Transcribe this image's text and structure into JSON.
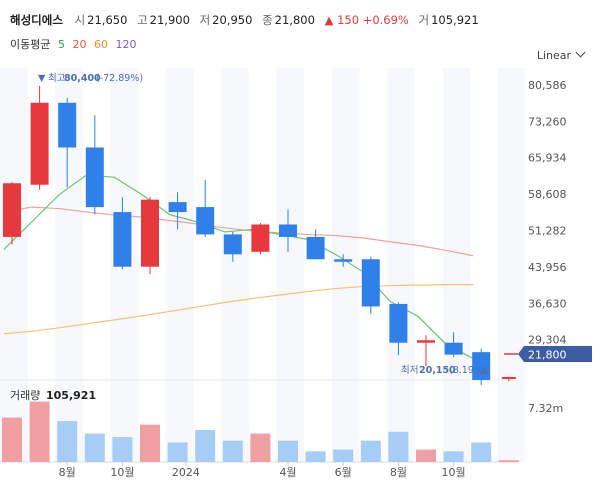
{
  "header": {
    "name": "해성디에스",
    "open_label": "시",
    "open": "21,650",
    "high_label": "고",
    "high": "21,900",
    "low_label": "저",
    "low": "20,950",
    "close_label": "종",
    "close": "21,800",
    "change_arrow": "▲",
    "change": "150",
    "change_pct": "+0.69%",
    "volume_label": "거",
    "volume": "105,921"
  },
  "ma": {
    "label": "이동평균",
    "periods": [
      {
        "text": "5",
        "color": "#3aa14a"
      },
      {
        "text": "20",
        "color": "#e05a3a"
      },
      {
        "text": "60",
        "color": "#e0922a"
      },
      {
        "text": "120",
        "color": "#7a5cc7"
      }
    ]
  },
  "scale_button": "Linear",
  "annotations": {
    "max_label": "최고",
    "max_value": "80,400",
    "max_pct": "(-72.89%)",
    "min_label": "최저",
    "min_value": "20,150",
    "min_pct": "(8.19%)"
  },
  "volume_panel": {
    "label": "거래량",
    "value": "105,921",
    "axis_tick": "7.32m"
  },
  "price_tag": "21,800",
  "colors": {
    "up": "#e5393e",
    "down": "#2f80e8",
    "ma5": "#6cc46c",
    "ma20": "#f0a0a0",
    "ma60": "#f5c07a",
    "tag": "#3d5ca3",
    "vol_up": "#f0a0a3",
    "vol_down": "#a6cdf5"
  },
  "chart_data": {
    "type": "candlestick",
    "y_ticks": [
      "80,586",
      "73,260",
      "65,934",
      "58,608",
      "51,282",
      "43,956",
      "36,630",
      "29,304"
    ],
    "x_ticks": [
      "8월",
      "10월",
      "2024",
      "4월",
      "6월",
      "8월",
      "10월"
    ],
    "ylim": [
      22000,
      84000
    ],
    "candles": [
      {
        "o": 50000,
        "c": 60800,
        "h": 61000,
        "l": 48500
      },
      {
        "o": 60500,
        "c": 77000,
        "h": 80400,
        "l": 59500
      },
      {
        "o": 77000,
        "c": 68000,
        "h": 78000,
        "l": 60000
      },
      {
        "o": 68000,
        "c": 56000,
        "h": 74500,
        "l": 54500
      },
      {
        "o": 55000,
        "c": 44000,
        "h": 58000,
        "l": 43500
      },
      {
        "o": 44000,
        "c": 57500,
        "h": 58000,
        "l": 42500
      },
      {
        "o": 57000,
        "c": 55000,
        "h": 59000,
        "l": 51500
      },
      {
        "o": 56000,
        "c": 50500,
        "h": 61500,
        "l": 50000
      },
      {
        "o": 50500,
        "c": 46500,
        "h": 51000,
        "l": 45000
      },
      {
        "o": 47000,
        "c": 52500,
        "h": 52800,
        "l": 46500
      },
      {
        "o": 52500,
        "c": 50000,
        "h": 55500,
        "l": 47000
      },
      {
        "o": 50000,
        "c": 45500,
        "h": 51500,
        "l": 45500
      },
      {
        "o": 45500,
        "c": 45000,
        "h": 46500,
        "l": 44000
      },
      {
        "o": 45500,
        "c": 36000,
        "h": 46000,
        "l": 34500
      },
      {
        "o": 36500,
        "c": 28700,
        "h": 36800,
        "l": 26200
      },
      {
        "o": 28700,
        "c": 29200,
        "h": 30200,
        "l": 24000
      },
      {
        "o": 28700,
        "c": 26300,
        "h": 30800,
        "l": 25800
      },
      {
        "o": 26800,
        "c": 21200,
        "h": 27500,
        "l": 20150
      },
      {
        "o": 21650,
        "c": 21800,
        "h": 21900,
        "l": 20950
      }
    ],
    "ma5": [
      47500,
      53000,
      58500,
      62500,
      62000,
      58500,
      54500,
      53000,
      51000,
      51500,
      50500,
      49500,
      46500,
      43000,
      37000,
      34000,
      28500,
      25500
    ],
    "ma20": [
      55000,
      56000,
      55700,
      55000,
      54400,
      54000,
      53300,
      52600,
      51800,
      51200,
      50800,
      50500,
      50300,
      49800,
      49000,
      48300,
      47300,
      46200
    ],
    "ma60": [
      30500,
      31000,
      31700,
      32500,
      33300,
      34100,
      35000,
      35900,
      36800,
      37600,
      38300,
      39000,
      39600,
      40000,
      40200,
      40300,
      40400,
      40400
    ],
    "volumes": [
      2.5,
      3.4,
      2.3,
      1.6,
      1.4,
      2.1,
      1.1,
      1.8,
      1.2,
      1.6,
      1.2,
      0.6,
      0.7,
      1.2,
      1.7,
      0.7,
      0.6,
      1.1,
      0.1
    ]
  }
}
